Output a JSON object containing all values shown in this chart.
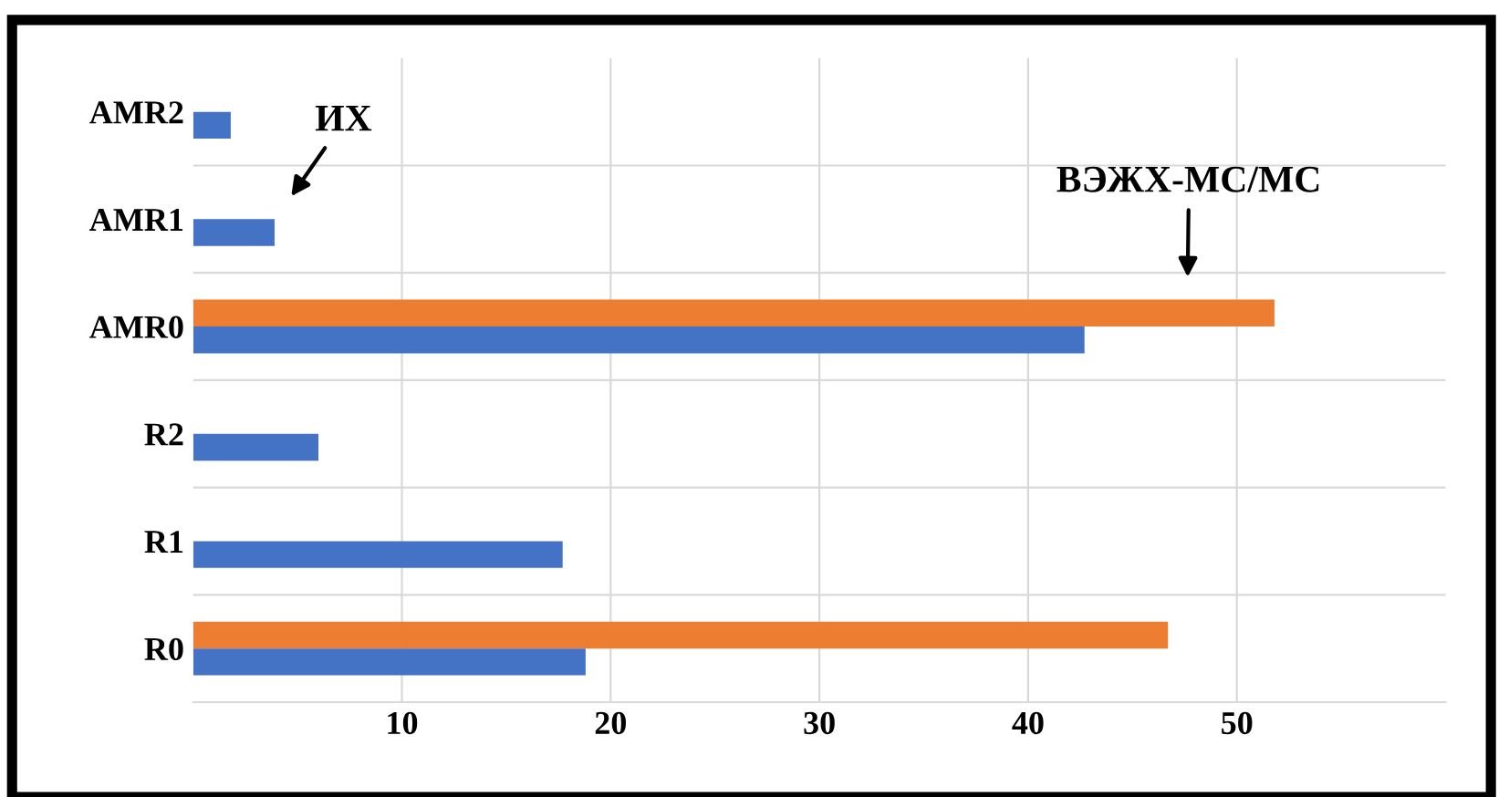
{
  "chart_data": {
    "type": "bar",
    "orientation": "horizontal",
    "categories": [
      "AMR2",
      "AMR1",
      "AMR0",
      "R2",
      "R1",
      "R0"
    ],
    "series": [
      {
        "color": "#ed7d31",
        "values": [
          null,
          null,
          51.8,
          null,
          null,
          46.7
        ]
      },
      {
        "color": "#4472c4",
        "values": [
          1.8,
          3.9,
          42.7,
          6.0,
          17.7,
          18.8
        ]
      }
    ],
    "xlim": [
      0,
      60
    ],
    "xticks": [
      10,
      20,
      30,
      40,
      50
    ],
    "grid": true,
    "legend": false,
    "annotations": [
      "ИХ",
      "ВЭЖХ-МС/МС"
    ]
  }
}
